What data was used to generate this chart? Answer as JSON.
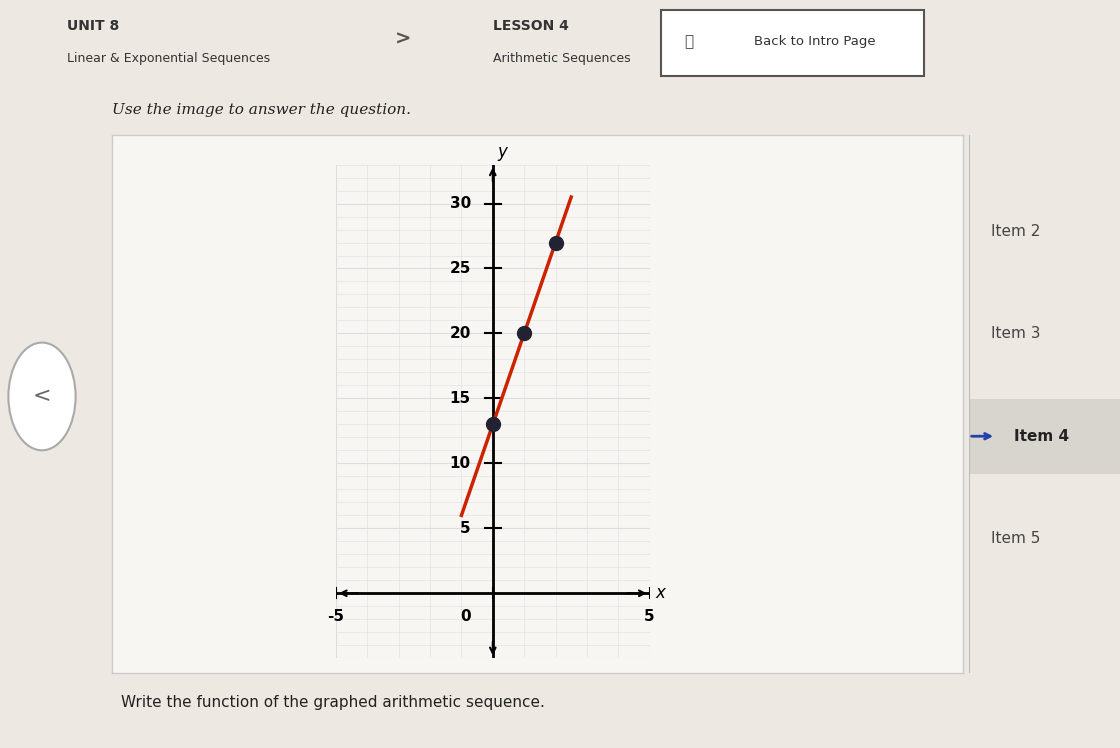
{
  "title_unit": "UNIT 8",
  "title_unit_sub": "Linear & Exponential Sequences",
  "title_lesson": "LESSON 4",
  "title_lesson_sub": "Arithmetic Sequences",
  "btn_text": "Back to Intro Page",
  "instruction": "Use the image to answer the question.",
  "question": "Write the function of the graphed arithmetic sequence.",
  "sidebar_items": [
    "Item 2",
    "Item 3",
    "Item 4",
    "Item 5"
  ],
  "points_x": [
    0,
    1,
    2
  ],
  "points_y": [
    13,
    20,
    27
  ],
  "line_x_start": -1.0,
  "line_x_end": 2.5,
  "line_slope": 7,
  "line_intercept": 13,
  "xlim": [
    -5,
    5
  ],
  "ylim": [
    -5,
    33
  ],
  "xtick_vals": [
    -5,
    0,
    5
  ],
  "ytick_vals": [
    5,
    10,
    15,
    20,
    25,
    30
  ],
  "line_color": "#cc2200",
  "point_color": "#222233",
  "grid_minor_color": "#dddddd",
  "grid_major_color": "#bbbbbb",
  "bg_color": "#ede8e2",
  "header_bg": "#e8e4de",
  "teal_bar_color": "#3399aa",
  "sidebar_bg": "#f0ece6",
  "sidebar_highlight_bg": "#d8d4ce",
  "sidebar_arrow_color": "#2244aa",
  "border_color": "#aaaaaa",
  "plot_bg": "#f8f6f2",
  "card_bg": "#f8f6f2",
  "white": "#ffffff"
}
